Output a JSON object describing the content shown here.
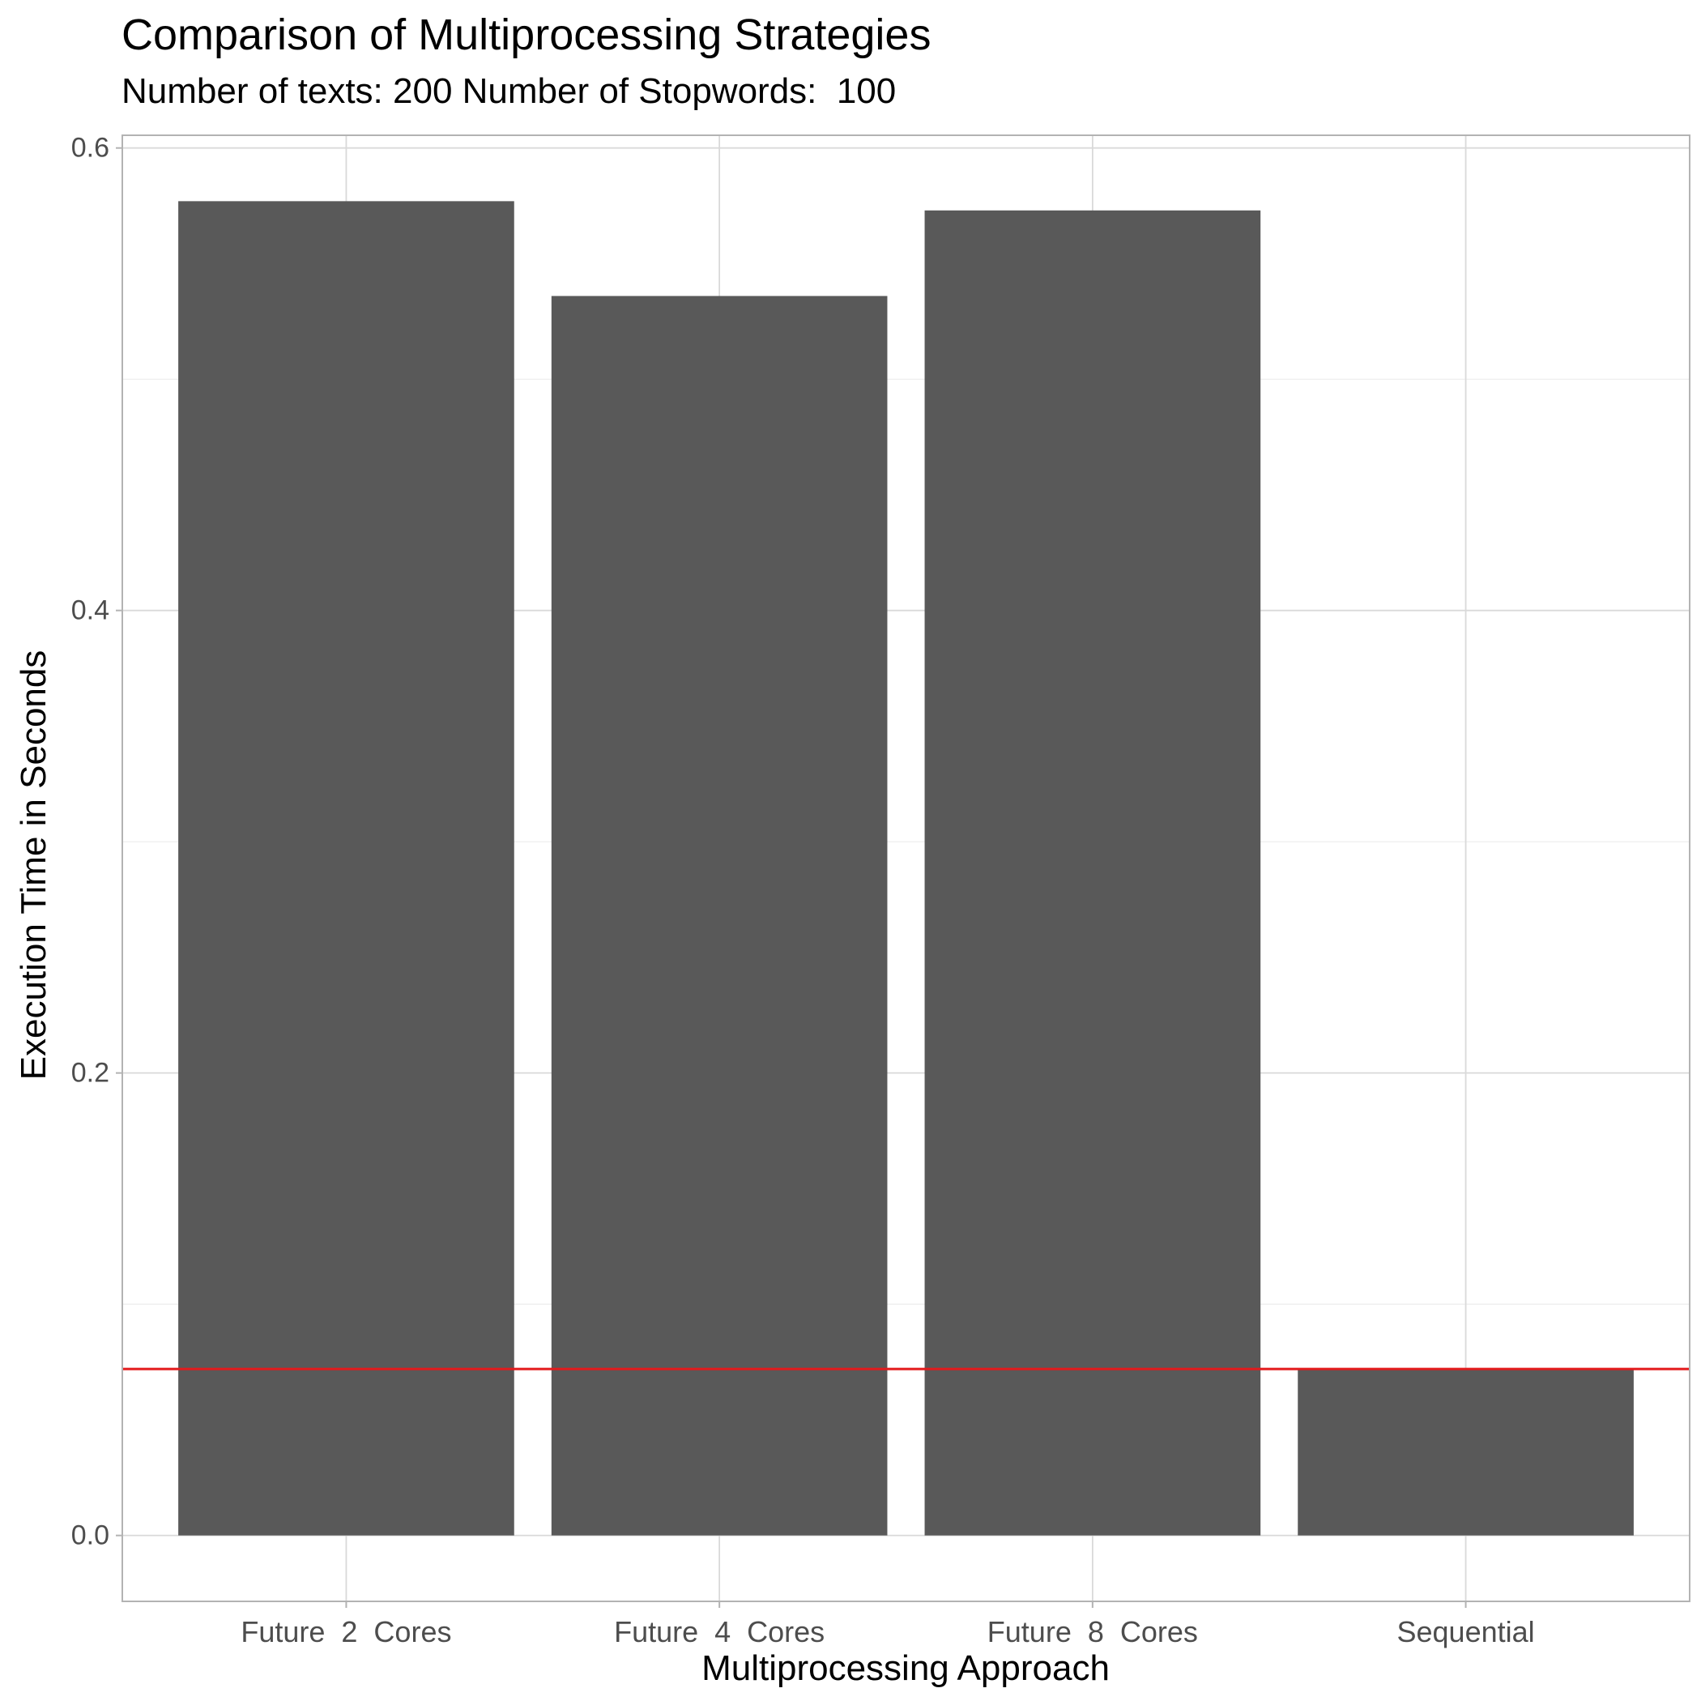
{
  "chart_data": {
    "type": "bar",
    "title": "Comparison of Multiprocessing Strategies",
    "subtitle": "Number of texts: 200 Number of Stopwords:  100",
    "xlabel": "Multiprocessing Approach",
    "ylabel": "Execution Time in Seconds",
    "categories": [
      "Future  2  Cores",
      "Future  4  Cores",
      "Future  8  Cores",
      "Sequential"
    ],
    "values": [
      0.577,
      0.536,
      0.573,
      0.072
    ],
    "ylim": [
      -0.0285,
      0.6055
    ],
    "yticks": [
      0.0,
      0.2,
      0.4,
      0.6
    ],
    "ytick_labels": [
      "0.0",
      "0.2",
      "0.4",
      "0.6"
    ],
    "reference_line": 0.072,
    "grid": true,
    "colors": {
      "bar": "#595959",
      "reference_line": "#e31a1c",
      "grid_major": "#d9d9d9",
      "grid_minor": "#ececec",
      "panel_border": "#b3b3b3",
      "tick_text": "#4d4d4d"
    }
  }
}
